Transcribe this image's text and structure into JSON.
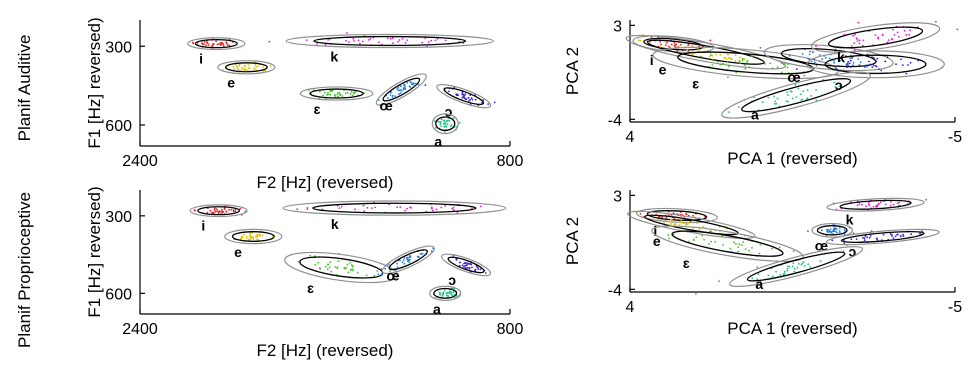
{
  "row_labels": [
    "Planif Auditive",
    "Planif Proprioceptive"
  ],
  "chart_data": [
    {
      "type": "scatter",
      "id": "formant-auditive",
      "xlabel": "F2 [Hz] (reversed)",
      "ylabel": "F1 [Hz] reversed)",
      "xlim": [
        2400,
        800
      ],
      "ylim": [
        680,
        200
      ],
      "xticks": [
        {
          "v": 2400,
          "t": "2400"
        },
        {
          "v": 800,
          "t": "800"
        }
      ],
      "yticks": [
        {
          "v": 300,
          "t": "300"
        },
        {
          "v": 600,
          "t": "600"
        }
      ],
      "vowels": [
        {
          "label": "i",
          "color": "#e02020",
          "x": 2070,
          "y": 290,
          "rx": 110,
          "ry": 18,
          "angle": 0
        },
        {
          "label": "e",
          "color": "#e0c000",
          "x": 1940,
          "y": 380,
          "rx": 110,
          "ry": 20,
          "angle": 0
        },
        {
          "label": "ɛ",
          "color": "#40c020",
          "x": 1550,
          "y": 480,
          "rx": 140,
          "ry": 20,
          "angle": 0
        },
        {
          "label": "œ",
          "color": "#2080e0",
          "x": 1270,
          "y": 465,
          "rx": 110,
          "ry": 22,
          "angle": 30
        },
        {
          "label": "ɔ",
          "color": "#4020d0",
          "x": 1000,
          "y": 490,
          "rx": 110,
          "ry": 20,
          "angle": -20
        },
        {
          "label": "a",
          "color": "#20c080",
          "x": 1080,
          "y": 595,
          "rx": 50,
          "ry": 30,
          "angle": 0
        },
        {
          "label": "k",
          "color": "#e020d0",
          "x": 1320,
          "y": 280,
          "rx": 400,
          "ry": 20,
          "angle": 0
        }
      ]
    },
    {
      "type": "scatter",
      "id": "pca-auditive",
      "xlabel": "PCA 1 (reversed)",
      "ylabel": "PCA 2",
      "xlim": [
        4,
        -5
      ],
      "ylim": [
        -4.2,
        3.4
      ],
      "xticks": [
        {
          "v": 4,
          "t": "4"
        },
        {
          "v": -5,
          "t": "-5"
        }
      ],
      "yticks": [
        {
          "v": 3,
          "t": "3"
        },
        {
          "v": -4,
          "t": "-4"
        }
      ],
      "vowels": [
        {
          "label": "i",
          "color": "#e02020",
          "x": 2.8,
          "y": 1.6,
          "rx": 1.0,
          "ry": 0.45,
          "angle": -5
        },
        {
          "label": "e",
          "color": "#e0c000",
          "x": 1.9,
          "y": 1.0,
          "rx": 2.0,
          "ry": 0.55,
          "angle": -10
        },
        {
          "label": "ɛ",
          "color": "#40c020",
          "x": 0.8,
          "y": 0.2,
          "rx": 2.3,
          "ry": 0.8,
          "angle": -5
        },
        {
          "label": "œ",
          "color": "#2080e0",
          "x": -1.5,
          "y": 0.6,
          "rx": 1.6,
          "ry": 0.7,
          "angle": -5
        },
        {
          "label": "ɔ",
          "color": "#4020d0",
          "x": -2.8,
          "y": 0.1,
          "rx": 1.7,
          "ry": 0.8,
          "angle": 0
        },
        {
          "label": "a",
          "color": "#20c080",
          "x": -0.6,
          "y": -2.2,
          "rx": 1.9,
          "ry": 0.7,
          "angle": 15
        },
        {
          "label": "k",
          "color": "#e020d0",
          "x": -2.8,
          "y": 2.1,
          "rx": 1.6,
          "ry": 0.7,
          "angle": 8
        }
      ]
    },
    {
      "type": "scatter",
      "id": "formant-proprioceptive",
      "xlabel": "F2 [Hz] (reversed)",
      "ylabel": "F1 [Hz] reversed)",
      "xlim": [
        2400,
        800
      ],
      "ylim": [
        680,
        200
      ],
      "xticks": [
        {
          "v": 2400,
          "t": "2400"
        },
        {
          "v": 800,
          "t": "800"
        }
      ],
      "yticks": [
        {
          "v": 300,
          "t": "300"
        },
        {
          "v": 600,
          "t": "600"
        }
      ],
      "vowels": [
        {
          "label": "i",
          "color": "#e02020",
          "x": 2060,
          "y": 280,
          "rx": 110,
          "ry": 18,
          "angle": 0
        },
        {
          "label": "e",
          "color": "#e0c000",
          "x": 1910,
          "y": 380,
          "rx": 110,
          "ry": 22,
          "angle": 0
        },
        {
          "label": "ɛ",
          "color": "#40c020",
          "x": 1530,
          "y": 500,
          "rx": 220,
          "ry": 40,
          "angle": -8
        },
        {
          "label": "œ",
          "color": "#2080e0",
          "x": 1240,
          "y": 470,
          "rx": 110,
          "ry": 22,
          "angle": 25
        },
        {
          "label": "ɔ",
          "color": "#4020d0",
          "x": 990,
          "y": 490,
          "rx": 100,
          "ry": 20,
          "angle": -20
        },
        {
          "label": "a",
          "color": "#20c080",
          "x": 1080,
          "y": 600,
          "rx": 60,
          "ry": 22,
          "angle": 0
        },
        {
          "label": "k",
          "color": "#e020d0",
          "x": 1300,
          "y": 270,
          "rx": 430,
          "ry": 22,
          "angle": 0
        }
      ]
    },
    {
      "type": "scatter",
      "id": "pca-proprioceptive",
      "xlabel": "PCA 1 (reversed)",
      "ylabel": "PCA 2",
      "xlim": [
        4,
        -5
      ],
      "ylim": [
        -4.2,
        3.4
      ],
      "xticks": [
        {
          "v": 4,
          "t": "4"
        },
        {
          "v": -5,
          "t": "-5"
        }
      ],
      "yticks": [
        {
          "v": 3,
          "t": "3"
        },
        {
          "v": -4,
          "t": "-4"
        }
      ],
      "vowels": [
        {
          "label": "i",
          "color": "#e02020",
          "x": 2.7,
          "y": 1.5,
          "rx": 1.0,
          "ry": 0.4,
          "angle": -3
        },
        {
          "label": "e",
          "color": "#e0c000",
          "x": 2.3,
          "y": 0.8,
          "rx": 1.6,
          "ry": 0.45,
          "angle": -10
        },
        {
          "label": "ɛ",
          "color": "#40c020",
          "x": 1.3,
          "y": -0.6,
          "rx": 1.9,
          "ry": 0.7,
          "angle": -10
        },
        {
          "label": "œ",
          "color": "#2080e0",
          "x": -1.6,
          "y": 0.4,
          "rx": 0.5,
          "ry": 0.4,
          "angle": 0
        },
        {
          "label": "ɔ",
          "color": "#4020d0",
          "x": -3.0,
          "y": -0.1,
          "rx": 1.4,
          "ry": 0.35,
          "angle": 5
        },
        {
          "label": "a",
          "color": "#20c080",
          "x": -0.6,
          "y": -2.3,
          "rx": 1.7,
          "ry": 0.55,
          "angle": 15
        },
        {
          "label": "k",
          "color": "#e020d0",
          "x": -2.8,
          "y": 2.3,
          "rx": 1.2,
          "ry": 0.35,
          "angle": 3
        }
      ]
    }
  ]
}
